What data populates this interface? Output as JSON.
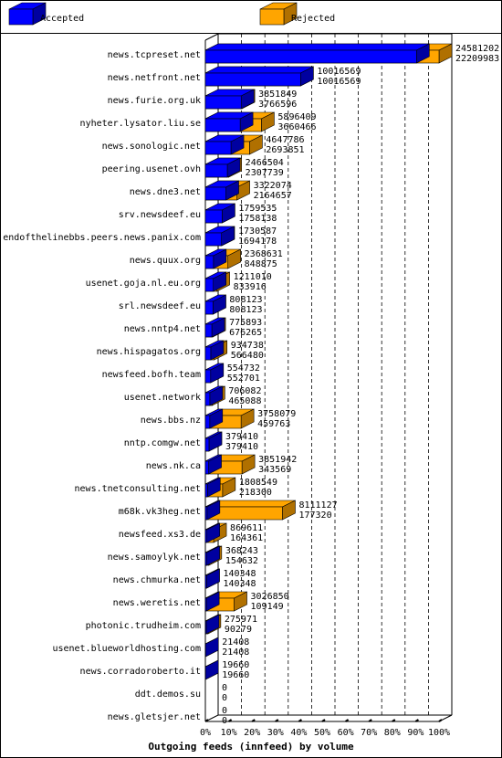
{
  "chart_data": {
    "type": "bar",
    "title": "",
    "xlabel": "Outgoing feeds (innfeed) by volume",
    "ylabel": "",
    "xlim": [
      0,
      100
    ],
    "x_unit": "%",
    "x_ticks": [
      "0%",
      "10%",
      "20%",
      "30%",
      "40%",
      "50%",
      "60%",
      "70%",
      "80%",
      "90%",
      "100%"
    ],
    "legend": {
      "placement": "top",
      "entries": [
        "Accepted",
        "Rejected"
      ]
    },
    "colors": {
      "accepted": "#0000ff",
      "accepted_dark": "#0000a0",
      "rejected": "#ffa500",
      "rejected_dark": "#b07000",
      "axis": "#000000",
      "grid": "#000000"
    },
    "grid": true,
    "max_value": 24581202,
    "categories": [
      "news.tcpreset.net",
      "news.netfront.net",
      "news.furie.org.uk",
      "nyheter.lysator.liu.se",
      "news.sonologic.net",
      "peering.usenet.ovh",
      "news.dne3.net",
      "srv.newsdeef.eu",
      "endofthelinebbs.peers.news.panix.com",
      "news.quux.org",
      "usenet.goja.nl.eu.org",
      "srl.newsdeef.eu",
      "news.nntp4.net",
      "news.hispagatos.org",
      "newsfeed.bofh.team",
      "usenet.network",
      "news.bbs.nz",
      "nntp.comgw.net",
      "news.nk.ca",
      "news.tnetconsulting.net",
      "m68k.vk3heg.net",
      "newsfeed.xs3.de",
      "news.samoylyk.net",
      "news.chmurka.net",
      "news.weretis.net",
      "photonic.trudheim.com",
      "usenet.blueworldhosting.com",
      "news.corradoroberto.it",
      "ddt.demos.su",
      "news.gletsjer.net"
    ],
    "series": [
      {
        "name": "Rejected",
        "values": [
          24581202,
          10016569,
          3851849,
          5896409,
          4647786,
          2466504,
          3322074,
          1759535,
          1730587,
          2368631,
          1211010,
          808123,
          775893,
          934738,
          554732,
          706082,
          3758079,
          379410,
          3851942,
          1808549,
          8111127,
          869611,
          368243,
          140348,
          3026850,
          275971,
          21408,
          19660,
          0,
          0
        ]
      },
      {
        "name": "Accepted",
        "values": [
          22209983,
          10016569,
          3766596,
          3660466,
          2693851,
          2307739,
          2164657,
          1758138,
          1694178,
          848875,
          833916,
          808123,
          676265,
          566480,
          552701,
          465088,
          459763,
          379410,
          343569,
          218300,
          177320,
          164361,
          154632,
          140348,
          109149,
          90279,
          21408,
          19660,
          0,
          0
        ]
      }
    ]
  }
}
